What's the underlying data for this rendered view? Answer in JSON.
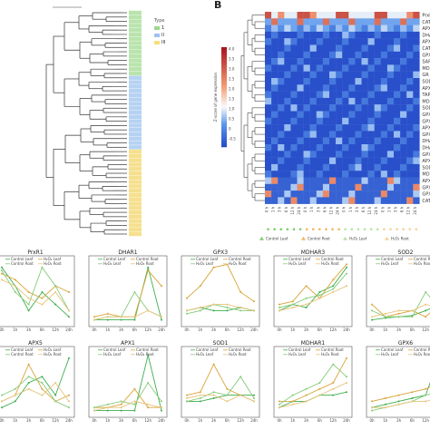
{
  "panel_b_letter": "B",
  "tree_legend": {
    "title": "Type",
    "items": [
      {
        "label": "1",
        "color": "#9bd88c"
      },
      {
        "label": "II",
        "color": "#9fc3ee"
      },
      {
        "label": "III",
        "color": "#f6de7a"
      }
    ]
  },
  "heatmap": {
    "colorbar_label": "Z-score of gene expression",
    "colorbar_ticks": [
      "4.0",
      "3.5",
      "3.0",
      "2.5",
      "2.0",
      "1.5",
      "1.0",
      "0.5",
      "0",
      "-0.5"
    ],
    "genes": [
      "PrxR1",
      "CAT1",
      "APX3",
      "DHAR1",
      "APX4",
      "CAT3",
      "GPX3",
      "SAPX",
      "MDHAR3",
      "GR",
      "SOD3",
      "APX6",
      "TAPX",
      "MDHAR2",
      "SOD2",
      "GPX1",
      "GPX5",
      "APX5",
      "GPX6",
      "DHAR3",
      "DHAR2",
      "GPX4",
      "APX1",
      "SOD1",
      "MDHAR1",
      "APX2",
      "GPX6",
      "GPX2",
      "CAT2"
    ],
    "starred": [
      6,
      8,
      17,
      23,
      24,
      26
    ],
    "time_labels": [
      "0 h",
      "1 h",
      "3 h",
      "6 h",
      "12 h",
      "24 h",
      "0 h",
      "1 h",
      "3 h",
      "6 h",
      "12 h",
      "24 h",
      "0 h",
      "1 h",
      "3 h",
      "6 h",
      "12 h",
      "24 h",
      "0 h",
      "1 h",
      "3 h",
      "6 h",
      "12 h",
      "24 h"
    ],
    "legend": [
      {
        "label": "Control Leaf",
        "color": "#7ccf6b"
      },
      {
        "label": "Control Root",
        "color": "#f0b860"
      },
      {
        "label": "H₂O₂ Leaf",
        "color": "#b8e3a6"
      },
      {
        "label": "H₂O₂ Root",
        "color": "#f6d29c"
      }
    ]
  },
  "line_charts": [
    {
      "title": "PrxR1",
      "series_labels": [
        "Control Leaf",
        "H₂O₂ Leaf",
        "Control Root",
        "H₂O₂ Root"
      ]
    },
    {
      "title": "DHAR1",
      "series_labels": [
        "Control Leaf",
        "Control Root",
        "H₂O₂ Leaf",
        "H₂O₂ Root"
      ]
    },
    {
      "title": "GPX3",
      "series_labels": [
        "Control Leaf",
        "Control Root",
        "H₂O₂ Leaf",
        "H₂O₂ Root"
      ]
    },
    {
      "title": "MDHAR3",
      "series_labels": [
        "Control Leaf",
        "Control Root",
        "H₂O₂ Leaf",
        "H₂O₂ Root"
      ]
    },
    {
      "title": "SOD2",
      "series_labels": [
        "Control Leaf",
        "Control Root",
        "H₂O₂ Leaf",
        "H₂O₂ Root"
      ]
    },
    {
      "title": "APX5",
      "series_labels": [
        "Control Leaf",
        "H₂O₂ Leaf",
        "Control Root",
        "H₂O₂ Root"
      ]
    },
    {
      "title": "APX1",
      "series_labels": [
        "Control Leaf",
        "Control Root",
        "H₂O₂ Leaf",
        "H₂O₂ Root"
      ]
    },
    {
      "title": "SOD1",
      "series_labels": [
        "Control Leaf",
        "Control Root",
        "H₂O₂ Leaf",
        "H₂O₂ Root"
      ]
    },
    {
      "title": "MDHAR1",
      "series_labels": [
        "Control Leaf",
        "Control Root",
        "H₂O₂ Leaf",
        "H₂O₂ Root"
      ]
    },
    {
      "title": "GPX6",
      "series_labels": [
        "Control Leaf",
        "Control Root",
        "H₂O₂ Leaf",
        "H₂O₂ Root"
      ]
    }
  ],
  "x_ticks": [
    "0h",
    "1h",
    "3h",
    "6h",
    "12h",
    "24h"
  ],
  "colors": {
    "leaf": "#3fae4e",
    "root": "#d9a43a",
    "h2o2_leaf": "#86cc79",
    "h2o2_root": "#e8c37a"
  }
}
